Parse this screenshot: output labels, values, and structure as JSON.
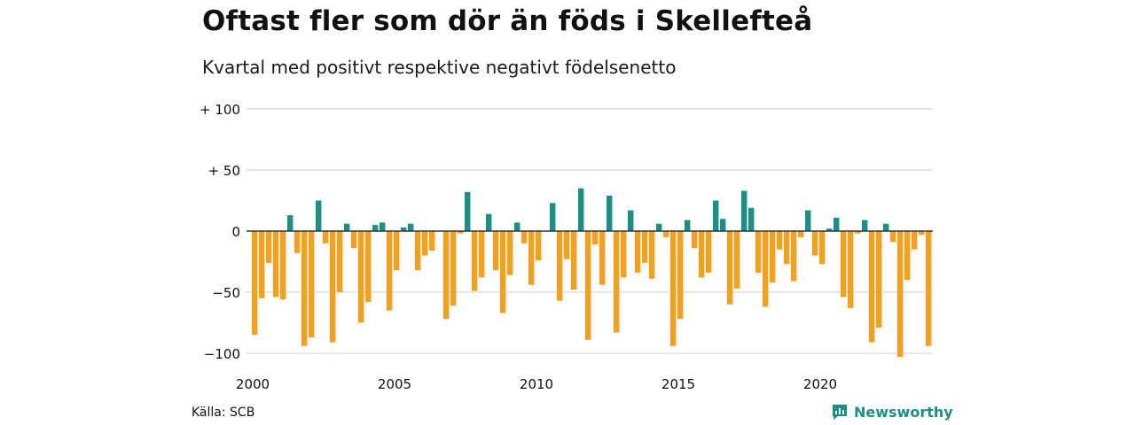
{
  "title": "Oftast fler som dör än föds i Skellefteå",
  "subtitle": "Kvartal med positivt respektive negativt födelsenetto",
  "source": "Källa: SCB",
  "brand": "Newsworthy",
  "colors": {
    "positive": "#1a9187",
    "negative": "#f5a01a",
    "grid": "#dddddd",
    "zero_line": "#333333",
    "brand": "#1a9187"
  },
  "chart_data": {
    "type": "bar",
    "title": "Oftast fler som dör än föds i Skellefteå",
    "subtitle": "Kvartal med positivt respektive negativt födelsenetto",
    "xlabel": "",
    "ylabel": "",
    "ylim": [
      -100,
      100
    ],
    "y_ticks": [
      {
        "value": 100,
        "label": "+ 100"
      },
      {
        "value": 50,
        "label": "+  50"
      },
      {
        "value": 0,
        "label": "0"
      },
      {
        "value": -50,
        "label": "−50"
      },
      {
        "value": -100,
        "label": "−100"
      }
    ],
    "x_ticks": [
      "2000",
      "2005",
      "2010",
      "2015",
      "2020"
    ],
    "grid": true,
    "legend": "none",
    "start_year": 2000,
    "periods_per_year": 4,
    "values": [
      -85,
      -55,
      -26,
      -54,
      -56,
      13,
      -18,
      -94,
      -87,
      25,
      -10,
      -91,
      -50,
      6,
      -14,
      -75,
      -58,
      5,
      7,
      -65,
      -32,
      3,
      6,
      -32,
      -20,
      -16,
      0,
      -72,
      -61,
      -2,
      32,
      -49,
      -38,
      14,
      -32,
      -67,
      -36,
      7,
      -10,
      -44,
      -24,
      0,
      23,
      -57,
      -23,
      -48,
      35,
      -89,
      -11,
      -44,
      29,
      -83,
      -38,
      17,
      -34,
      -26,
      -39,
      6,
      -5,
      -94,
      -72,
      9,
      -14,
      -38,
      -34,
      25,
      10,
      -60,
      -47,
      33,
      19,
      -34,
      -62,
      -42,
      -15,
      -27,
      -41,
      -5,
      17,
      -20,
      -27,
      2,
      11,
      -54,
      -63,
      -2,
      9,
      -91,
      -79,
      6,
      -9,
      -103,
      -40,
      -15,
      -3,
      -94
    ]
  }
}
